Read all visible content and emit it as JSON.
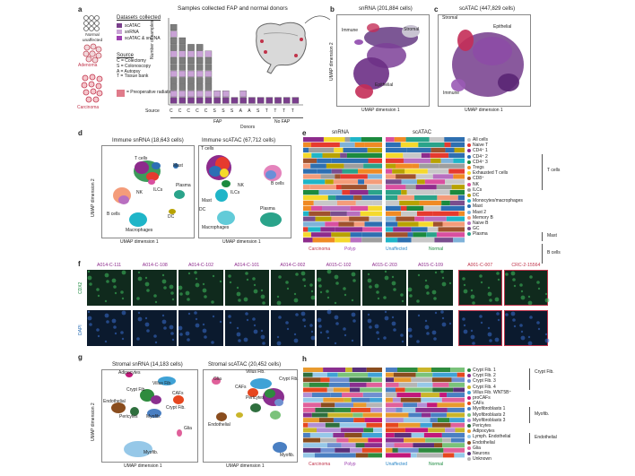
{
  "panel_letters": {
    "a": "a",
    "b": "b",
    "c": "c",
    "d": "d",
    "e": "e",
    "f": "f",
    "g": "g",
    "h": "h"
  },
  "a": {
    "title": "Samples collected FAP and normal donors",
    "tissue_labels": [
      "Normal unaffected",
      "Adenoma",
      "Carcinoma"
    ],
    "datasets_heading": "Datasets collected",
    "datasets": [
      {
        "label": "scATAC",
        "color": "#7a3f8c"
      },
      {
        "label": "snRNA",
        "color": "#c9a2d6"
      },
      {
        "label": "scATAC & snRNA",
        "color": "#9c3fb0"
      }
    ],
    "source_heading": "Source",
    "sources": [
      "C = Colectomy",
      "S = Colonoscopy",
      "A = Autopsy",
      "T = Tissue bank"
    ],
    "radiation_label": "= Preoperative radiation",
    "ylabel": "Number of samples",
    "source_row_label": "Source",
    "source_codes": [
      "C",
      "C",
      "C",
      "C",
      "C",
      "S",
      "S",
      "S",
      "A",
      "A",
      "S",
      "T",
      "T",
      "T",
      "T"
    ],
    "group_fap": "FAP",
    "group_nofap": "No FAP",
    "donors_label": "Donors"
  },
  "b": {
    "title": "snRNA (201,884 cells)",
    "xlabel": "UMAP dimension 1",
    "ylabel": "UMAP dimension 2",
    "labels": [
      "Immune",
      "Stromal",
      "Epithelial"
    ]
  },
  "c": {
    "title": "scATAC (447,829 cells)",
    "xlabel": "UMAP dimension 1",
    "labels": [
      "Stromal",
      "Epithelial",
      "Immune"
    ]
  },
  "d": {
    "title1": "Immune snRNA (18,643 cells)",
    "title2": "Immune scATAC (67,712 cells)",
    "xlabel": "UMAP dimension 1",
    "ylabel": "UMAP dimension 2",
    "labels1": [
      "T cells",
      "Mast",
      "NK",
      "ILCs",
      "Plasma",
      "B cells",
      "DC",
      "Macrophages"
    ],
    "labels2": [
      "T cells",
      "B cells",
      "NK",
      "ILCs",
      "Mast",
      "DC",
      "Plasma",
      "Macrophages"
    ]
  },
  "e": {
    "head1": "snRNA",
    "head2": "scATAC",
    "foot": [
      "Carcinoma",
      "Polyp",
      "Unaffected",
      "Normal"
    ],
    "legend": [
      {
        "label": "All cells",
        "color": "#c8c8c8"
      },
      {
        "label": "Naive T",
        "color": "#e63a2e"
      },
      {
        "label": "CD4⁺ 1",
        "color": "#8d2b8c"
      },
      {
        "label": "CD4⁺ 2",
        "color": "#2c6fb5"
      },
      {
        "label": "CD4⁺ 3",
        "color": "#1b8a3e"
      },
      {
        "label": "Tregs",
        "color": "#f08a24"
      },
      {
        "label": "Exhausted T cells",
        "color": "#f5d92c"
      },
      {
        "label": "CD8⁺",
        "color": "#a0522d"
      },
      {
        "label": "NK",
        "color": "#d94fa0"
      },
      {
        "label": "ILCs",
        "color": "#9e9e9e"
      },
      {
        "label": "DC",
        "color": "#b8a200"
      },
      {
        "label": "Monocytes/macrophages",
        "color": "#1fb5c8"
      },
      {
        "label": "Mast",
        "color": "#2e6fb0"
      },
      {
        "label": "Mast 2",
        "color": "#7fb2d9"
      },
      {
        "label": "Memory B",
        "color": "#f49c7a"
      },
      {
        "label": "Naive B",
        "color": "#b86fc0"
      },
      {
        "label": "GC",
        "color": "#7a4e8e"
      },
      {
        "label": "Plasma",
        "color": "#2aa38a"
      }
    ],
    "brackets": [
      "T cells",
      "Mast",
      "B cells"
    ]
  },
  "f": {
    "titles": [
      "A014-C-111",
      "A014-C-108",
      "A014-C-102",
      "A014-C-101",
      "A014-C-002",
      "A015-C-102",
      "A015-C-203",
      "A015-C-109",
      "A001-C-007",
      "CRC-2-15564"
    ],
    "row_labels": [
      "CDX2",
      "DAPI"
    ]
  },
  "g": {
    "title1": "Stromal snRNA (14,183 cells)",
    "title2": "Stromal scATAC (20,452 cells)",
    "xlabel": "UMAP dimension 1",
    "ylabel": "UMAP dimension 2",
    "labels1": [
      "Adipocytes",
      "Villus Fib.",
      "Crypt Fib.",
      "CAFs",
      "Endothelial",
      "Pericytes",
      "Myofib.",
      "Crypt Fib.",
      "Myofib.",
      "Glia"
    ],
    "labels2": [
      "Villus Fib.",
      "Glia",
      "CAFs",
      "Crypt Fib.",
      "Pericytes",
      "Endothelial",
      "Myofib."
    ]
  },
  "h": {
    "foot": [
      "Carcinoma",
      "Polyp",
      "Unaffected",
      "Normal"
    ],
    "legend": [
      {
        "label": "Crypt Fib. 1",
        "color": "#2e8b3e"
      },
      {
        "label": "Crypt Fib. 2",
        "color": "#8a2f8f"
      },
      {
        "label": "Crypt Fib. 3",
        "color": "#6f8fd0"
      },
      {
        "label": "Crypt Fib. 4",
        "color": "#c9b52a"
      },
      {
        "label": "Villus Fib. WNT5B⁺",
        "color": "#3fa2d6"
      },
      {
        "label": "proCAFs",
        "color": "#c2187a"
      },
      {
        "label": "CAFs",
        "color": "#e6471f"
      },
      {
        "label": "Myofibroblasts 1",
        "color": "#4a7fc2"
      },
      {
        "label": "Myofibroblasts 2",
        "color": "#7ac27a"
      },
      {
        "label": "Myofibroblasts 3",
        "color": "#b28fd4"
      },
      {
        "label": "Pericytes",
        "color": "#2f6f3e"
      },
      {
        "label": "Adipocytes",
        "color": "#e89a2e"
      },
      {
        "label": "Lymph. Endothelial",
        "color": "#96c8e8"
      },
      {
        "label": "Endothelial",
        "color": "#8a4d1e"
      },
      {
        "label": "Glia",
        "color": "#e0609a"
      },
      {
        "label": "Neurons",
        "color": "#5a2f7a"
      },
      {
        "label": "Unknown",
        "color": "#b5b5b5"
      }
    ],
    "brackets": [
      "Crypt Fib.",
      "Myofib.",
      "Endothelial"
    ]
  }
}
